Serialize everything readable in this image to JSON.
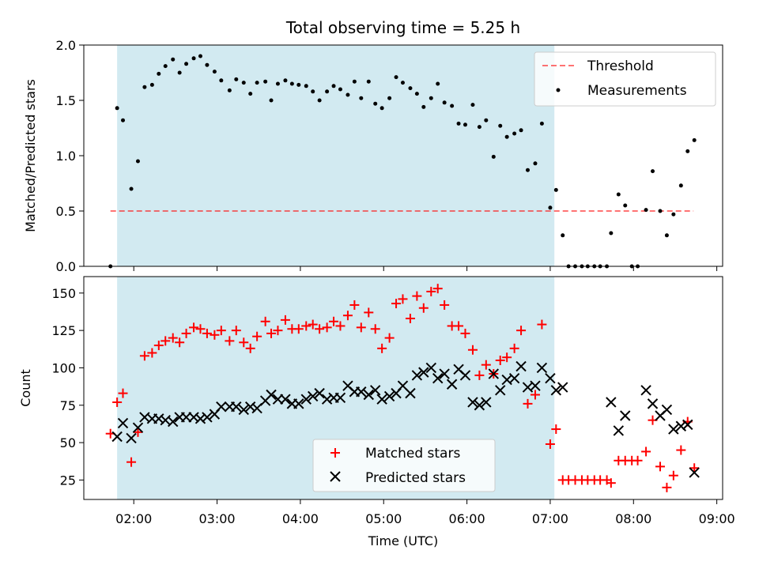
{
  "chart_data": [
    {
      "type": "scatter",
      "title": "Total observing time = 5.25 h",
      "ylabel": "Matched/Predicted stars",
      "xlabel": "",
      "x_unit": "hours UTC",
      "xlim": [
        1.4,
        9.07
      ],
      "ylim": [
        0,
        2.0
      ],
      "yticks": [
        0.0,
        0.5,
        1.0,
        1.5,
        2.0
      ],
      "ytick_labels": [
        "0.0",
        "0.5",
        "1.0",
        "1.5",
        "2.0"
      ],
      "observing_window": [
        1.8,
        7.05
      ],
      "shade_color": "#add8e6",
      "grid": false,
      "legend_position": "upper right",
      "threshold": {
        "name": "Threshold",
        "y": 0.5,
        "x_range": [
          1.72,
          8.72
        ],
        "color": "#ff0000",
        "style": "dashed"
      },
      "series": [
        {
          "name": "Measurements",
          "marker": "dot",
          "color": "#000000",
          "points": [
            [
              1.72,
              0.0
            ],
            [
              1.8,
              1.43
            ],
            [
              1.87,
              1.32
            ],
            [
              1.97,
              0.7
            ],
            [
              2.05,
              0.95
            ],
            [
              2.13,
              1.62
            ],
            [
              2.22,
              1.64
            ],
            [
              2.3,
              1.74
            ],
            [
              2.38,
              1.81
            ],
            [
              2.47,
              1.87
            ],
            [
              2.55,
              1.75
            ],
            [
              2.63,
              1.83
            ],
            [
              2.72,
              1.88
            ],
            [
              2.8,
              1.9
            ],
            [
              2.88,
              1.82
            ],
            [
              2.97,
              1.76
            ],
            [
              3.05,
              1.68
            ],
            [
              3.15,
              1.59
            ],
            [
              3.23,
              1.69
            ],
            [
              3.32,
              1.66
            ],
            [
              3.4,
              1.56
            ],
            [
              3.48,
              1.66
            ],
            [
              3.58,
              1.67
            ],
            [
              3.65,
              1.5
            ],
            [
              3.73,
              1.65
            ],
            [
              3.82,
              1.68
            ],
            [
              3.9,
              1.65
            ],
            [
              3.98,
              1.64
            ],
            [
              4.07,
              1.63
            ],
            [
              4.15,
              1.58
            ],
            [
              4.23,
              1.5
            ],
            [
              4.32,
              1.58
            ],
            [
              4.4,
              1.63
            ],
            [
              4.48,
              1.6
            ],
            [
              4.57,
              1.55
            ],
            [
              4.65,
              1.67
            ],
            [
              4.73,
              1.52
            ],
            [
              4.82,
              1.67
            ],
            [
              4.9,
              1.47
            ],
            [
              4.98,
              1.43
            ],
            [
              5.07,
              1.52
            ],
            [
              5.15,
              1.71
            ],
            [
              5.23,
              1.66
            ],
            [
              5.32,
              1.61
            ],
            [
              5.4,
              1.56
            ],
            [
              5.48,
              1.44
            ],
            [
              5.57,
              1.52
            ],
            [
              5.65,
              1.65
            ],
            [
              5.73,
              1.48
            ],
            [
              5.82,
              1.45
            ],
            [
              5.9,
              1.29
            ],
            [
              5.98,
              1.28
            ],
            [
              6.07,
              1.46
            ],
            [
              6.15,
              1.26
            ],
            [
              6.23,
              1.32
            ],
            [
              6.32,
              0.99
            ],
            [
              6.4,
              1.27
            ],
            [
              6.48,
              1.17
            ],
            [
              6.57,
              1.2
            ],
            [
              6.65,
              1.23
            ],
            [
              6.73,
              0.87
            ],
            [
              6.82,
              0.93
            ],
            [
              6.9,
              1.29
            ],
            [
              7.0,
              0.53
            ],
            [
              7.07,
              0.69
            ],
            [
              7.15,
              0.28
            ],
            [
              7.22,
              0.0
            ],
            [
              7.3,
              0.0
            ],
            [
              7.38,
              0.0
            ],
            [
              7.45,
              0.0
            ],
            [
              7.53,
              0.0
            ],
            [
              7.6,
              0.0
            ],
            [
              7.68,
              0.0
            ],
            [
              7.73,
              0.3
            ],
            [
              7.82,
              0.65
            ],
            [
              7.9,
              0.55
            ],
            [
              7.98,
              0.0
            ],
            [
              8.05,
              0.0
            ],
            [
              8.15,
              0.51
            ],
            [
              8.23,
              0.86
            ],
            [
              8.32,
              0.5
            ],
            [
              8.4,
              0.28
            ],
            [
              8.48,
              0.47
            ],
            [
              8.57,
              0.73
            ],
            [
              8.65,
              1.04
            ],
            [
              8.73,
              1.14
            ]
          ]
        }
      ]
    },
    {
      "type": "scatter",
      "title": "",
      "xlabel": "Time (UTC)",
      "ylabel": "Count",
      "x_unit": "hours UTC",
      "xlim": [
        1.4,
        9.07
      ],
      "ylim": [
        12,
        161
      ],
      "xticks": [
        2,
        3,
        4,
        5,
        6,
        7,
        8,
        9
      ],
      "xtick_labels": [
        "02:00",
        "03:00",
        "04:00",
        "05:00",
        "06:00",
        "07:00",
        "08:00",
        "09:00"
      ],
      "yticks": [
        25,
        50,
        75,
        100,
        125,
        150
      ],
      "ytick_labels": [
        "25",
        "50",
        "75",
        "100",
        "125",
        "150"
      ],
      "observing_window": [
        1.8,
        7.05
      ],
      "shade_color": "#add8e6",
      "grid": false,
      "legend_position": "lower center",
      "series": [
        {
          "name": "Matched stars",
          "marker": "plus",
          "color": "#ff0000",
          "points": [
            [
              1.72,
              56
            ],
            [
              1.8,
              77
            ],
            [
              1.87,
              83
            ],
            [
              1.97,
              37
            ],
            [
              2.05,
              57
            ],
            [
              2.13,
              108
            ],
            [
              2.22,
              110
            ],
            [
              2.3,
              115
            ],
            [
              2.38,
              118
            ],
            [
              2.47,
              120
            ],
            [
              2.55,
              117
            ],
            [
              2.63,
              123
            ],
            [
              2.72,
              127
            ],
            [
              2.8,
              126
            ],
            [
              2.88,
              123
            ],
            [
              2.97,
              122
            ],
            [
              3.05,
              125
            ],
            [
              3.15,
              118
            ],
            [
              3.23,
              125
            ],
            [
              3.32,
              117
            ],
            [
              3.4,
              113
            ],
            [
              3.48,
              121
            ],
            [
              3.58,
              131
            ],
            [
              3.65,
              123
            ],
            [
              3.73,
              125
            ],
            [
              3.82,
              132
            ],
            [
              3.9,
              126
            ],
            [
              3.98,
              126
            ],
            [
              4.07,
              128
            ],
            [
              4.15,
              129
            ],
            [
              4.23,
              126
            ],
            [
              4.32,
              127
            ],
            [
              4.4,
              131
            ],
            [
              4.48,
              128
            ],
            [
              4.57,
              135
            ],
            [
              4.65,
              142
            ],
            [
              4.73,
              127
            ],
            [
              4.82,
              137
            ],
            [
              4.9,
              126
            ],
            [
              4.98,
              113
            ],
            [
              5.07,
              120
            ],
            [
              5.15,
              143
            ],
            [
              5.23,
              146
            ],
            [
              5.32,
              133
            ],
            [
              5.4,
              148
            ],
            [
              5.48,
              140
            ],
            [
              5.57,
              151
            ],
            [
              5.65,
              153
            ],
            [
              5.73,
              142
            ],
            [
              5.82,
              128
            ],
            [
              5.9,
              128
            ],
            [
              5.98,
              123
            ],
            [
              6.07,
              112
            ],
            [
              6.15,
              95
            ],
            [
              6.23,
              102
            ],
            [
              6.32,
              96
            ],
            [
              6.4,
              105
            ],
            [
              6.48,
              107
            ],
            [
              6.57,
              113
            ],
            [
              6.65,
              125
            ],
            [
              6.73,
              76
            ],
            [
              6.82,
              82
            ],
            [
              6.9,
              129
            ],
            [
              7.0,
              49
            ],
            [
              7.07,
              59
            ],
            [
              7.15,
              25
            ],
            [
              7.22,
              25
            ],
            [
              7.3,
              25
            ],
            [
              7.38,
              25
            ],
            [
              7.45,
              25
            ],
            [
              7.53,
              25
            ],
            [
              7.6,
              25
            ],
            [
              7.68,
              25
            ],
            [
              7.73,
              23
            ],
            [
              7.82,
              38
            ],
            [
              7.9,
              38
            ],
            [
              7.98,
              38
            ],
            [
              8.05,
              38
            ],
            [
              8.15,
              44
            ],
            [
              8.23,
              65
            ],
            [
              8.32,
              34
            ],
            [
              8.4,
              20
            ],
            [
              8.48,
              28
            ],
            [
              8.57,
              45
            ],
            [
              8.65,
              64
            ],
            [
              8.73,
              33
            ]
          ]
        },
        {
          "name": "Predicted stars",
          "marker": "x",
          "color": "#000000",
          "points": [
            [
              1.8,
              54
            ],
            [
              1.87,
              63
            ],
            [
              1.97,
              53
            ],
            [
              2.05,
              60
            ],
            [
              2.13,
              67
            ],
            [
              2.22,
              66
            ],
            [
              2.3,
              66
            ],
            [
              2.38,
              65
            ],
            [
              2.47,
              64
            ],
            [
              2.55,
              67
            ],
            [
              2.63,
              67
            ],
            [
              2.72,
              67
            ],
            [
              2.8,
              66
            ],
            [
              2.88,
              67
            ],
            [
              2.97,
              69
            ],
            [
              3.05,
              74
            ],
            [
              3.15,
              74
            ],
            [
              3.23,
              74
            ],
            [
              3.32,
              72
            ],
            [
              3.4,
              74
            ],
            [
              3.48,
              73
            ],
            [
              3.58,
              78
            ],
            [
              3.65,
              82
            ],
            [
              3.73,
              79
            ],
            [
              3.82,
              79
            ],
            [
              3.9,
              76
            ],
            [
              3.98,
              76
            ],
            [
              4.07,
              79
            ],
            [
              4.15,
              81
            ],
            [
              4.23,
              83
            ],
            [
              4.32,
              79
            ],
            [
              4.4,
              80
            ],
            [
              4.48,
              80
            ],
            [
              4.57,
              88
            ],
            [
              4.65,
              84
            ],
            [
              4.73,
              84
            ],
            [
              4.82,
              82
            ],
            [
              4.9,
              85
            ],
            [
              4.98,
              79
            ],
            [
              5.07,
              81
            ],
            [
              5.15,
              83
            ],
            [
              5.23,
              88
            ],
            [
              5.32,
              83
            ],
            [
              5.4,
              95
            ],
            [
              5.48,
              97
            ],
            [
              5.57,
              100
            ],
            [
              5.65,
              93
            ],
            [
              5.73,
              96
            ],
            [
              5.82,
              89
            ],
            [
              5.9,
              99
            ],
            [
              5.98,
              95
            ],
            [
              6.07,
              77
            ],
            [
              6.15,
              75
            ],
            [
              6.23,
              77
            ],
            [
              6.32,
              96
            ],
            [
              6.4,
              85
            ],
            [
              6.48,
              92
            ],
            [
              6.57,
              93
            ],
            [
              6.65,
              101
            ],
            [
              6.73,
              87
            ],
            [
              6.82,
              88
            ],
            [
              6.9,
              100
            ],
            [
              7.0,
              93
            ],
            [
              7.07,
              85
            ],
            [
              7.15,
              87
            ],
            [
              7.73,
              77
            ],
            [
              7.82,
              58
            ],
            [
              7.9,
              68
            ],
            [
              8.15,
              85
            ],
            [
              8.23,
              76
            ],
            [
              8.32,
              68
            ],
            [
              8.4,
              72
            ],
            [
              8.48,
              59
            ],
            [
              8.57,
              61
            ],
            [
              8.65,
              62
            ],
            [
              8.73,
              30
            ]
          ]
        }
      ]
    }
  ]
}
